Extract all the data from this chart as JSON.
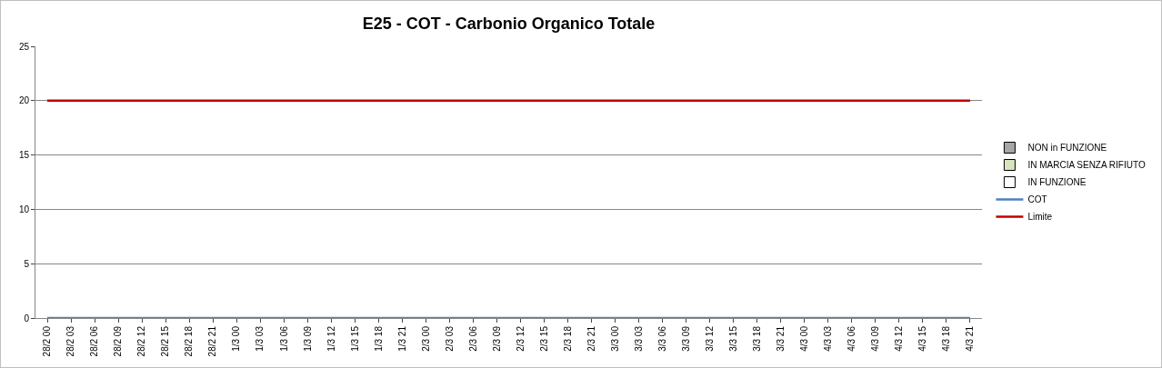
{
  "chart_data": {
    "type": "line",
    "title": "E25 - COT - Carbonio Organico Totale",
    "categories": [
      "28/2 00",
      "28/2 03",
      "28/2 06",
      "28/2 09",
      "28/2 12",
      "28/2 15",
      "28/2 18",
      "28/2 21",
      "1/3 00",
      "1/3 03",
      "1/3 06",
      "1/3 09",
      "1/3 12",
      "1/3 15",
      "1/3 18",
      "1/3 21",
      "2/3 00",
      "2/3 03",
      "2/3 06",
      "2/3 09",
      "2/3 12",
      "2/3 15",
      "2/3 18",
      "2/3 21",
      "3/3 00",
      "3/3 03",
      "3/3 06",
      "3/3 09",
      "3/3 12",
      "3/3 15",
      "3/3 18",
      "3/3 21",
      "4/3 00",
      "4/3 03",
      "4/3 06",
      "4/3 09",
      "4/3 12",
      "4/3 15",
      "4/3 18",
      "4/3 21"
    ],
    "series": [
      {
        "name": "NON in FUNZIONE",
        "type": "bar",
        "color": "#a6a6a6",
        "values": [
          null,
          null,
          null,
          null,
          null,
          null,
          null,
          null,
          null,
          null,
          null,
          null,
          null,
          null,
          null,
          null,
          null,
          null,
          null,
          null,
          null,
          null,
          null,
          null,
          null,
          null,
          null,
          null,
          null,
          null,
          null,
          null,
          null,
          null,
          null,
          null,
          null,
          null,
          null,
          null
        ]
      },
      {
        "name": "IN MARCIA SENZA RIFIUTO",
        "type": "bar",
        "color": "#d7e4bd",
        "values": [
          null,
          null,
          null,
          null,
          null,
          null,
          null,
          null,
          null,
          null,
          null,
          null,
          null,
          null,
          null,
          null,
          null,
          null,
          null,
          null,
          null,
          null,
          null,
          null,
          null,
          null,
          null,
          null,
          null,
          null,
          null,
          null,
          null,
          null,
          null,
          null,
          null,
          null,
          null,
          null
        ]
      },
      {
        "name": "IN FUNZIONE",
        "type": "bar",
        "color": "#ffffff",
        "values": [
          null,
          null,
          null,
          null,
          null,
          null,
          null,
          null,
          null,
          null,
          null,
          null,
          null,
          null,
          null,
          null,
          null,
          null,
          null,
          null,
          null,
          null,
          null,
          null,
          null,
          null,
          null,
          null,
          null,
          null,
          null,
          null,
          null,
          null,
          null,
          null,
          null,
          null,
          null,
          null
        ]
      },
      {
        "name": "COT",
        "color": "#4f81bd",
        "values": [
          0,
          0,
          0,
          0,
          0,
          0,
          0,
          0,
          0,
          0,
          0,
          0,
          0,
          0,
          0,
          0,
          0,
          0,
          0,
          0,
          0,
          0,
          0,
          0,
          0,
          0,
          0,
          0,
          0,
          0,
          0,
          0,
          0,
          0,
          0,
          0,
          0,
          0,
          0,
          0
        ]
      },
      {
        "name": "Limite",
        "color": "#c00000",
        "values": [
          20,
          20,
          20,
          20,
          20,
          20,
          20,
          20,
          20,
          20,
          20,
          20,
          20,
          20,
          20,
          20,
          20,
          20,
          20,
          20,
          20,
          20,
          20,
          20,
          20,
          20,
          20,
          20,
          20,
          20,
          20,
          20,
          20,
          20,
          20,
          20,
          20,
          20,
          20,
          20
        ]
      }
    ],
    "ylim": [
      0,
      25
    ],
    "yticks": [
      0,
      5,
      10,
      15,
      20,
      25
    ],
    "grid": "y",
    "legend": "right",
    "marker": "none",
    "line_style": "solid"
  }
}
